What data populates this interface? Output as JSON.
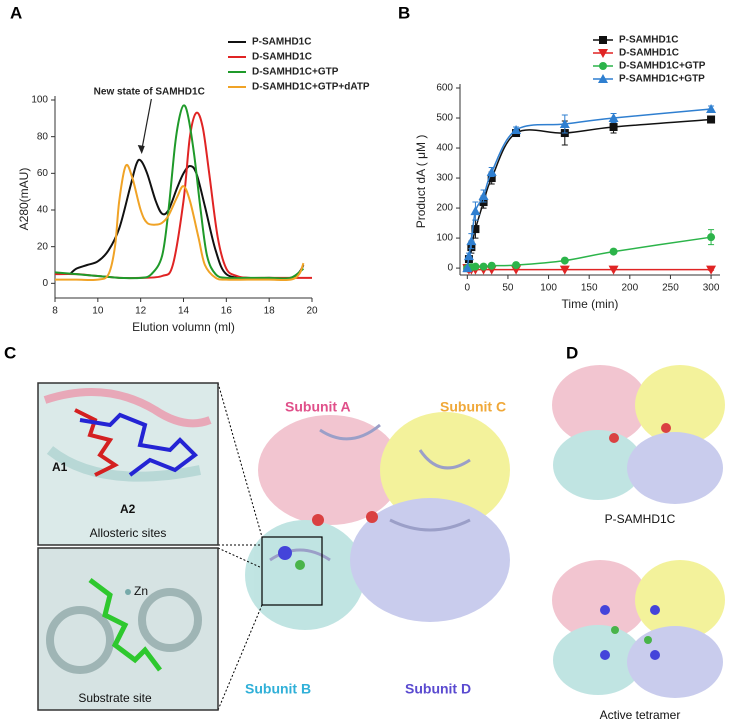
{
  "panel_labels": [
    "A",
    "B",
    "C",
    "D"
  ],
  "chart_data": [
    {
      "type": "line",
      "xlabel": "Elution volumn (ml)",
      "ylabel": "A280(mAU)",
      "annotation": "New state of SAMHD1C",
      "xlim": [
        8,
        20
      ],
      "ylim": [
        -8,
        100
      ],
      "xticks": [
        8,
        10,
        12,
        14,
        16,
        18,
        20
      ],
      "yticks": [
        0,
        20,
        40,
        60,
        80,
        100
      ],
      "series": [
        {
          "name": "P-SAMHD1C",
          "color": "#111111",
          "x": [
            8.7,
            9,
            9.5,
            10,
            10.5,
            11,
            11.5,
            11.8,
            12,
            12.3,
            12.7,
            13,
            13.3,
            13.7,
            14,
            14.3,
            14.6,
            15,
            15.5,
            16,
            17,
            18,
            19,
            19.4,
            19.6
          ],
          "values": [
            5,
            8,
            10,
            12,
            18,
            30,
            52,
            65,
            67,
            60,
            45,
            38,
            40,
            52,
            60,
            64,
            60,
            42,
            18,
            5,
            3,
            3,
            3,
            6,
            10
          ]
        },
        {
          "name": "D-SAMHD1C",
          "color": "#e02424",
          "x": [
            8,
            9,
            10,
            11,
            12,
            13,
            13.5,
            14,
            14.3,
            14.6,
            14.9,
            15.2,
            15.6,
            16,
            16.5,
            17,
            18,
            19,
            20
          ],
          "values": [
            5,
            5,
            4,
            3,
            3,
            4,
            10,
            45,
            80,
            93,
            85,
            60,
            25,
            8,
            4,
            3,
            3,
            3,
            3
          ]
        },
        {
          "name": "D-SAMHD1C+GTP",
          "color": "#1f9a2a",
          "x": [
            8,
            9,
            10,
            11,
            12,
            12.5,
            13,
            13.3,
            13.6,
            13.8,
            14,
            14.2,
            14.5,
            14.8,
            15.1,
            15.5,
            16,
            17,
            18,
            19,
            19.6
          ],
          "values": [
            6,
            5,
            4,
            3,
            3,
            5,
            15,
            40,
            75,
            90,
            97,
            92,
            70,
            40,
            15,
            5,
            3,
            3,
            3,
            3,
            8
          ]
        },
        {
          "name": "D-SAMHD1C+GTP+dATP",
          "color": "#f0a326",
          "x": [
            8,
            9,
            10,
            10.5,
            10.8,
            11,
            11.3,
            11.6,
            12,
            12.3,
            12.7,
            13,
            13.3,
            13.7,
            14,
            14.3,
            14.7,
            15,
            15.5,
            16,
            17,
            18,
            19,
            19.4,
            19.6
          ],
          "values": [
            2,
            2,
            2,
            5,
            20,
            45,
            64,
            58,
            40,
            33,
            32,
            33,
            37,
            47,
            53,
            45,
            25,
            10,
            3,
            2,
            2,
            2,
            2,
            5,
            11
          ]
        }
      ]
    },
    {
      "type": "scatter-line",
      "xlabel": "Time (min)",
      "ylabel": "Product dA ( μM )",
      "xlim": [
        -9,
        311
      ],
      "ylim": [
        -23,
        600
      ],
      "xticks": [
        0,
        50,
        100,
        150,
        200,
        250,
        300
      ],
      "yticks": [
        0,
        100,
        200,
        300,
        400,
        500,
        600
      ],
      "x": [
        0,
        2,
        5,
        10,
        20,
        30,
        60,
        120,
        180,
        300
      ],
      "series": [
        {
          "name": "P-SAMHD1C",
          "color": "#111111",
          "marker": "square",
          "values": [
            0,
            30,
            70,
            130,
            220,
            300,
            450,
            450,
            470,
            495
          ],
          "errors": [
            0,
            5,
            20,
            30,
            20,
            20,
            10,
            40,
            20,
            5
          ]
        },
        {
          "name": "D-SAMHD1C",
          "color": "#e02424",
          "marker": "triangle-down",
          "values": [
            0,
            -5,
            -5,
            -5,
            -5,
            -5,
            -5,
            -5,
            -5,
            -5
          ],
          "errors": [
            0,
            0,
            0,
            0,
            0,
            0,
            0,
            0,
            0,
            2
          ]
        },
        {
          "name": "D-SAMHD1C+GTP",
          "color": "#2cb44a",
          "marker": "circle",
          "values": [
            0,
            2,
            3,
            5,
            5,
            8,
            10,
            25,
            55,
            103
          ],
          "errors": [
            0,
            0,
            0,
            0,
            0,
            2,
            2,
            4,
            5,
            25
          ]
        },
        {
          "name": "P-SAMHD1C+GTP",
          "color": "#2f7fd0",
          "marker": "triangle-up",
          "values": [
            0,
            40,
            90,
            190,
            240,
            320,
            460,
            480,
            500,
            530
          ],
          "errors": [
            0,
            10,
            25,
            30,
            20,
            15,
            10,
            30,
            15,
            10
          ]
        }
      ]
    }
  ],
  "panel_c": {
    "subunits": [
      "Subunit A",
      "Subunit C",
      "Subunit B",
      "Subunit D"
    ],
    "inset_top": {
      "labels": [
        "A1",
        "A2"
      ],
      "caption": "Allosteric sites"
    },
    "inset_bottom": {
      "label": "Zn",
      "caption": "Substrate site"
    }
  },
  "panel_d": {
    "captions": [
      "P-SAMHD1C",
      "Active tetramer"
    ]
  }
}
